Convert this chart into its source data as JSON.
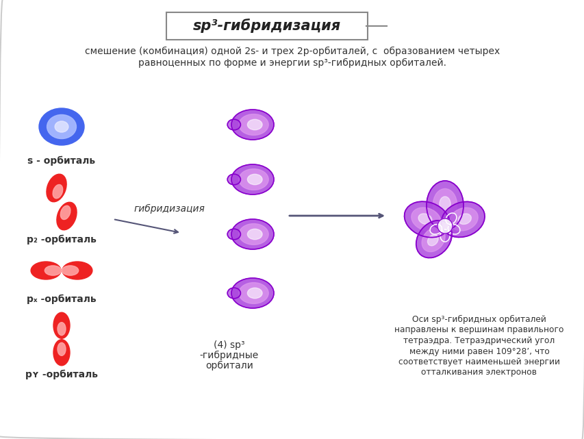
{
  "title": "sp³-гибридизация",
  "subtitle_line1": "смешение (комбинация) одной 2s- и трех 2p-орбиталей, с  образованием четырех",
  "subtitle_line2": "равноценных по форме и энергии sp³-гибридных орбиталей.",
  "label_s": "s - орбиталь",
  "label_pz": "p₂ -орбиталь",
  "label_px": "pₓ -орбиталь",
  "label_py": "pʏ -орбиталь",
  "arrow1_label": "гибридизация",
  "bottom_label_line1": "(4) sp³",
  "bottom_label_line2": "-гибридные",
  "bottom_label_line3": "орбитали",
  "right_text_line1": "Оси sp³-гибридных орбиталей",
  "right_text_line2": "направлены к вершинам правильного",
  "right_text_line3": "тетраэдра. Тетраэдрический угол",
  "right_text_line4": "между ними равен 109°28’, что",
  "right_text_line5": "соответствует наименьшей энергии",
  "right_text_line6": "отталкивания электронов",
  "bg_color": "#ffffff",
  "s_orbital_color_main": "#4466ee",
  "s_orbital_color_light": "#aabbff",
  "p_orbital_color_main": "#ee2222",
  "p_orbital_color_light": "#ffaaaa",
  "hybrid_color_dark": "#8800cc",
  "hybrid_color_mid": "#aa44dd",
  "hybrid_color_light": "#dd99ee",
  "text_color": "#333333",
  "arrow_color": "#555577",
  "title_color": "#222222",
  "border_color": "#cccccc"
}
